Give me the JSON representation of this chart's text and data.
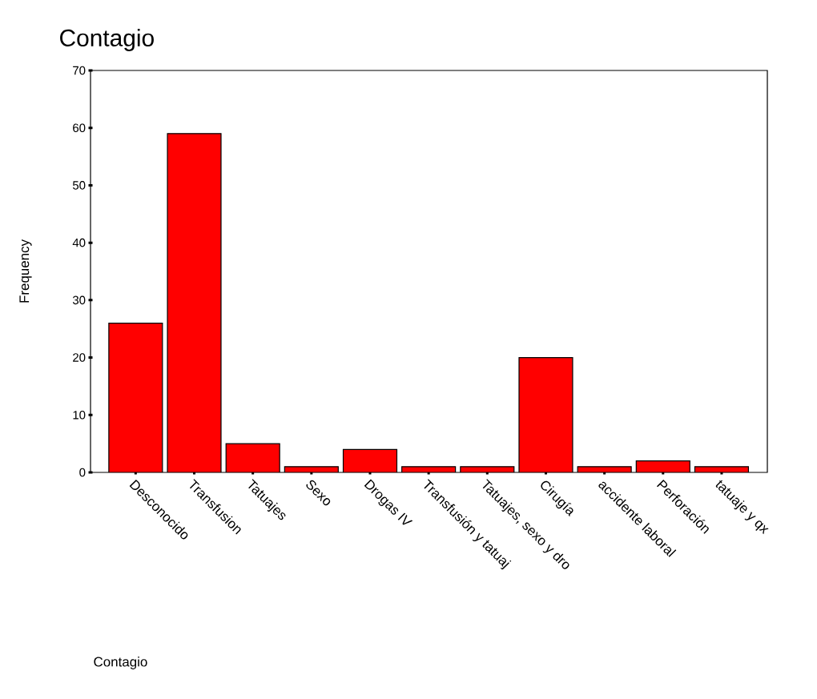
{
  "chart_data": {
    "type": "bar",
    "title": "Contagio",
    "annotations": [
      "Contagio"
    ],
    "ylabel": "Frequency",
    "categories": [
      "Desconocido",
      "Transfusion",
      "Tatuajes",
      "Sexo",
      "Drogas IV",
      "Transfusión y tatuaj",
      "Tatuajes, sexo y dro",
      "Cirugía",
      "accidente laboral",
      "Perforación",
      "tatuaje y qx"
    ],
    "values": [
      26,
      59,
      5,
      1,
      4,
      1,
      1,
      20,
      1,
      2,
      1
    ],
    "color": "#ff0000",
    "ylim": [
      0,
      70
    ],
    "yticks": [
      0,
      10,
      20,
      30,
      40,
      50,
      60,
      70
    ],
    "grid": false
  }
}
